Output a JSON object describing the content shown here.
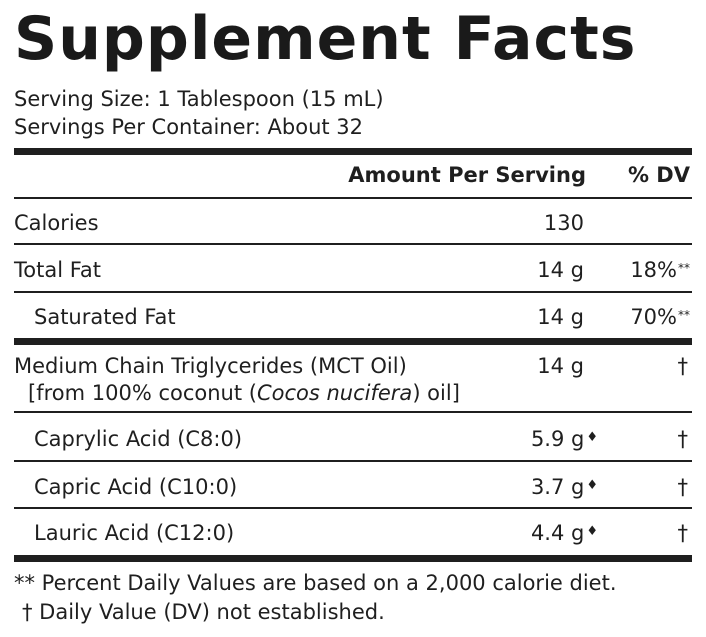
{
  "title": "Supplement Facts",
  "serving_size": "Serving Size: 1 Tablespoon (15 mL)",
  "servings_per_container": "Servings Per Container: About 32",
  "header": {
    "amount": "Amount Per Serving",
    "dv": "% DV"
  },
  "rows": [
    {
      "name": "Calories",
      "amount": "130",
      "dv": ""
    },
    {
      "name": "Total Fat",
      "amount": "14 g",
      "dv": "18%",
      "dv_mark": "**"
    },
    {
      "name": "Saturated Fat",
      "amount": "14 g",
      "dv": "70%",
      "dv_mark": "**"
    },
    {
      "name": "Medium Chain Triglycerides (MCT Oil)",
      "sub_pre": "[from 100% coconut (",
      "sub_italic": "Cocos nucifera",
      "sub_post": ") oil]",
      "amount": "14 g",
      "dv": "†"
    },
    {
      "name": "Caprylic Acid (C8:0)",
      "amount": "5.9 g",
      "amount_mark": "♦",
      "dv": "†"
    },
    {
      "name": "Capric Acid (C10:0)",
      "amount": "3.7 g",
      "amount_mark": "♦",
      "dv": "†"
    },
    {
      "name": "Lauric Acid (C12:0)",
      "amount": "4.4 g",
      "amount_mark": "♦",
      "dv": "†"
    }
  ],
  "footnotes": [
    "** Percent Daily Values are based on a 2,000 calorie diet.",
    "† Daily Value (DV) not established."
  ]
}
